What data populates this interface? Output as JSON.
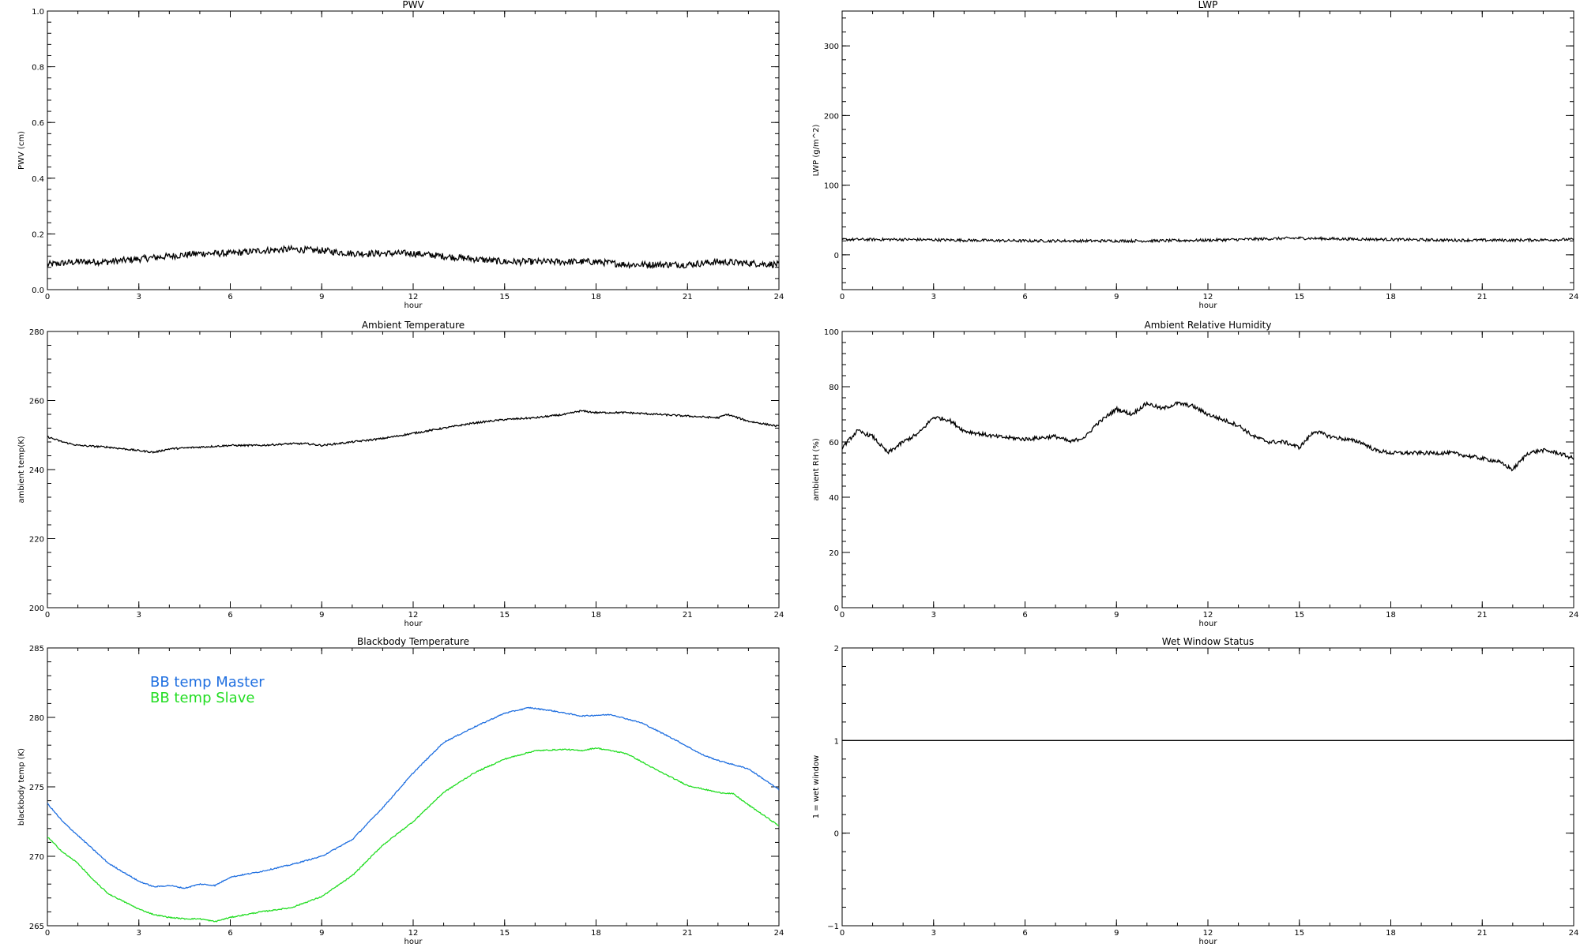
{
  "chart_data": [
    {
      "id": "pwv",
      "type": "line",
      "title": "PWV",
      "xlabel": "hour",
      "ylabel": "PWV (cm)",
      "xlim": [
        0,
        24
      ],
      "ylim": [
        0,
        1.0
      ],
      "xticks": [
        "0",
        "3",
        "6",
        "9",
        "12",
        "15",
        "18",
        "21",
        "24"
      ],
      "yticks": [
        "0.0",
        "0.2",
        "0.4",
        "0.6",
        "0.8",
        "1.0"
      ],
      "series": [
        {
          "color": "#000000",
          "noise": 0.012,
          "x": [
            0,
            1,
            2,
            3,
            4,
            5,
            6,
            7,
            8,
            9,
            10,
            11,
            12,
            13,
            14,
            15,
            16,
            17,
            18,
            19,
            20,
            21,
            22,
            23,
            24
          ],
          "y": [
            0.09,
            0.1,
            0.1,
            0.11,
            0.12,
            0.13,
            0.13,
            0.14,
            0.145,
            0.14,
            0.13,
            0.13,
            0.13,
            0.12,
            0.11,
            0.1,
            0.1,
            0.1,
            0.1,
            0.09,
            0.09,
            0.09,
            0.1,
            0.095,
            0.09
          ]
        }
      ]
    },
    {
      "id": "lwp",
      "type": "line",
      "title": "LWP",
      "xlabel": "hour",
      "ylabel": "LWP (g/m^2)",
      "xlim": [
        0,
        24
      ],
      "ylim": [
        -50,
        350
      ],
      "xticks": [
        "0",
        "3",
        "6",
        "9",
        "12",
        "15",
        "18",
        "21",
        "24"
      ],
      "yticks": [
        "0",
        "100",
        "200",
        "300"
      ],
      "ytick_values": [
        0,
        100,
        200,
        300
      ],
      "series": [
        {
          "color": "#000000",
          "noise": 2.0,
          "x": [
            0,
            2,
            4,
            6,
            8,
            10,
            12,
            14,
            15,
            16,
            18,
            20,
            22,
            24
          ],
          "y": [
            22,
            22,
            21,
            20,
            20,
            20,
            21,
            23,
            24,
            23,
            22,
            21,
            21,
            22
          ]
        }
      ]
    },
    {
      "id": "ambient-temp",
      "type": "line",
      "title": "Ambient Temperature",
      "xlabel": "hour",
      "ylabel": "ambient temp(K)",
      "xlim": [
        0,
        24
      ],
      "ylim": [
        200,
        280
      ],
      "xticks": [
        "0",
        "3",
        "6",
        "9",
        "12",
        "15",
        "18",
        "21",
        "24"
      ],
      "yticks": [
        "200",
        "220",
        "240",
        "260",
        "280"
      ],
      "series": [
        {
          "color": "#000000",
          "noise": 0.25,
          "x": [
            0,
            0.5,
            1,
            2,
            3,
            3.5,
            4,
            5,
            6,
            7,
            8,
            8.5,
            9,
            10,
            11,
            12,
            13,
            14,
            15,
            16,
            17,
            17.5,
            18,
            19,
            20,
            21,
            22,
            22.3,
            23,
            24
          ],
          "y": [
            249.5,
            248,
            247,
            246.5,
            245.5,
            245,
            246,
            246.5,
            247,
            247,
            247.5,
            247.5,
            247,
            248,
            249,
            250.5,
            252,
            253.5,
            254.5,
            255,
            256,
            257,
            256.5,
            256.5,
            256,
            255.5,
            255,
            256,
            254,
            252.5
          ]
        }
      ]
    },
    {
      "id": "ambient-rh",
      "type": "line",
      "title": "Ambient Relative Humidity",
      "xlabel": "hour",
      "ylabel": "ambient RH (%)",
      "xlim": [
        0,
        24
      ],
      "ylim": [
        0,
        100
      ],
      "xticks": [
        "0",
        "3",
        "6",
        "9",
        "12",
        "15",
        "18",
        "21",
        "24"
      ],
      "yticks": [
        "0",
        "20",
        "40",
        "60",
        "80",
        "100"
      ],
      "series": [
        {
          "color": "#000000",
          "noise": 0.7,
          "x": [
            0,
            0.5,
            1,
            1.5,
            2,
            2.5,
            3,
            3.5,
            4,
            5,
            6,
            7,
            7.5,
            8,
            8.3,
            9,
            9.5,
            10,
            10.5,
            11,
            11.5,
            12,
            12.5,
            13,
            13.5,
            14,
            14.5,
            15,
            15.5,
            16,
            16.5,
            17,
            17.5,
            18,
            19,
            20,
            21,
            21.5,
            22,
            22.5,
            23,
            23.5,
            24
          ],
          "y": [
            58,
            64,
            62,
            56,
            60,
            63,
            69,
            68,
            64,
            62,
            61,
            62,
            60,
            62,
            66,
            72,
            70,
            74,
            72,
            74,
            73,
            70,
            68,
            66,
            62,
            60,
            60,
            58,
            64,
            62,
            61,
            60,
            57,
            56,
            56,
            56,
            54,
            53,
            50,
            56,
            57,
            56,
            54
          ]
        }
      ]
    },
    {
      "id": "blackbody-temp",
      "type": "line",
      "title": "Blackbody Temperature",
      "xlabel": "hour",
      "ylabel": "blackbody temp (K)",
      "xlim": [
        0,
        24
      ],
      "ylim": [
        265,
        285
      ],
      "xticks": [
        "0",
        "3",
        "6",
        "9",
        "12",
        "15",
        "18",
        "21",
        "24"
      ],
      "yticks": [
        "265",
        "270",
        "275",
        "280",
        "285"
      ],
      "legend": "top-left",
      "series": [
        {
          "name": "BB temp Master",
          "color": "#1f6fe0",
          "noise": 0.04,
          "x": [
            0,
            0.5,
            1,
            1.5,
            2,
            3,
            3.5,
            4,
            4.5,
            5,
            5.5,
            6,
            7,
            8,
            9,
            10,
            11,
            12,
            13,
            14,
            15,
            15.8,
            16.5,
            17.5,
            18.5,
            19.5,
            20.5,
            21.5,
            22,
            23,
            24
          ],
          "y": [
            273.8,
            272.5,
            271.5,
            270.5,
            269.5,
            268.2,
            267.8,
            267.9,
            267.7,
            268,
            267.9,
            268.5,
            268.9,
            269.4,
            270,
            271.2,
            273.5,
            276,
            278.2,
            279.3,
            280.3,
            280.7,
            280.5,
            280.1,
            280.2,
            279.6,
            278.5,
            277.3,
            276.9,
            276.3,
            274.8
          ]
        },
        {
          "name": "BB temp Slave",
          "color": "#22dd22",
          "noise": 0.04,
          "x": [
            0,
            0.5,
            1,
            1.5,
            2,
            3,
            3.5,
            4,
            4.5,
            5,
            5.5,
            6,
            7,
            8,
            9,
            10,
            11,
            12,
            13,
            14,
            15,
            16,
            17,
            17.5,
            18,
            19,
            20,
            21,
            22,
            22.5,
            23,
            24
          ],
          "y": [
            271.4,
            270.3,
            269.5,
            268.3,
            267.3,
            266.2,
            265.8,
            265.6,
            265.5,
            265.5,
            265.3,
            265.6,
            266,
            266.3,
            267.1,
            268.6,
            270.8,
            272.5,
            274.6,
            276,
            277,
            277.6,
            277.7,
            277.6,
            277.8,
            277.4,
            276.2,
            275.1,
            274.6,
            274.5,
            273.7,
            272.2
          ]
        }
      ]
    },
    {
      "id": "wet-window",
      "type": "line",
      "title": "Wet Window Status",
      "xlabel": "hour",
      "ylabel": "1 = wet window",
      "xlim": [
        0,
        24
      ],
      "ylim": [
        -1,
        2
      ],
      "xticks": [
        "0",
        "3",
        "6",
        "9",
        "12",
        "15",
        "18",
        "21",
        "24"
      ],
      "yticks": [
        "−1",
        "0",
        "1",
        "2"
      ],
      "series": [
        {
          "color": "#000000",
          "noise": 0,
          "x": [
            0,
            24
          ],
          "y": [
            1,
            1
          ]
        }
      ]
    }
  ]
}
